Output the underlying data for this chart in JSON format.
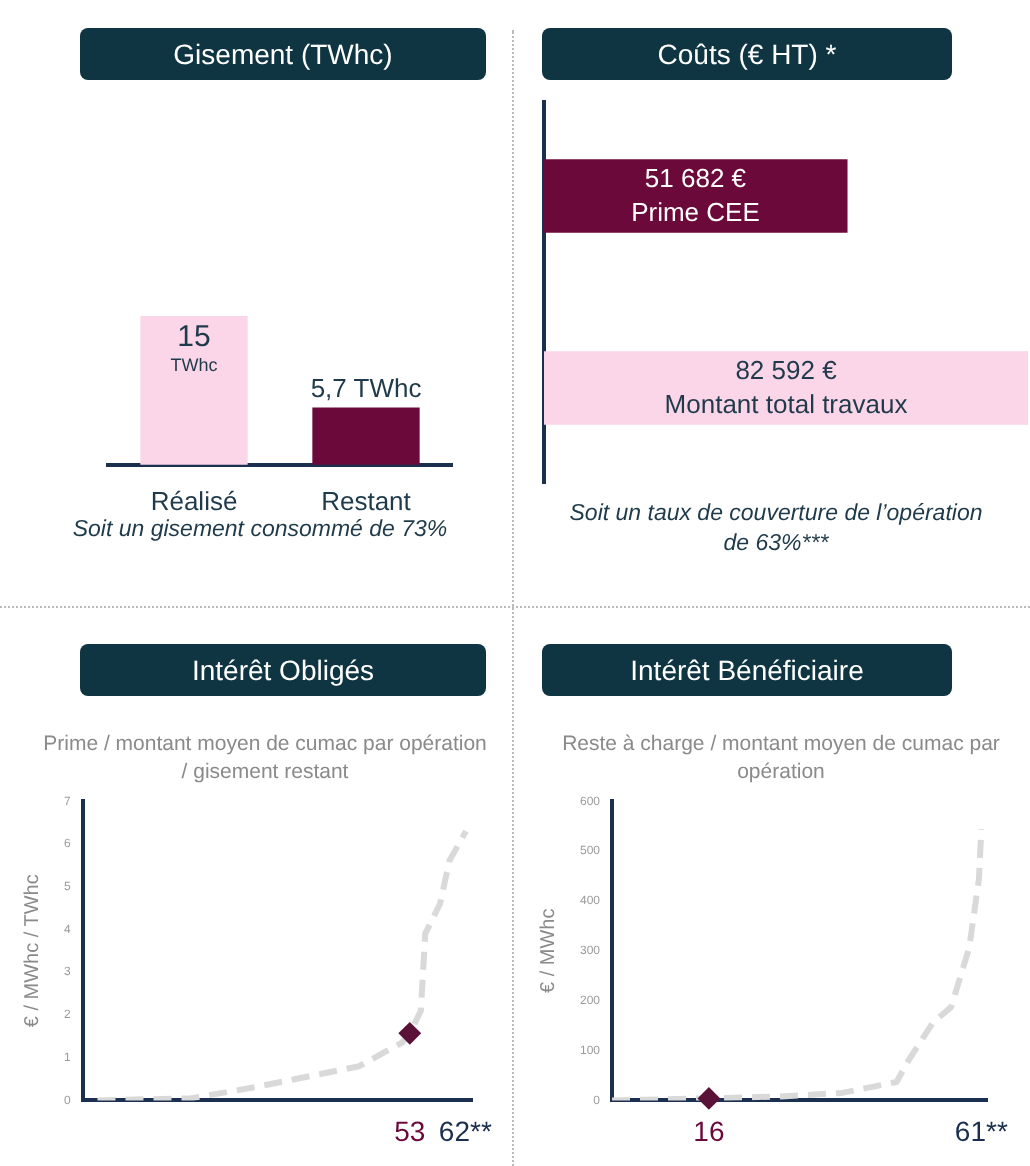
{
  "chart_data": [
    {
      "type": "bar",
      "title": "Gisement (TWhc)",
      "categories": [
        "Réalisé",
        "Restant"
      ],
      "values": [
        15,
        5.7
      ],
      "value_labels": [
        "15 TWhc",
        "5,7 TWhc"
      ],
      "colors": [
        "#fbd5e8",
        "#6b0a3a"
      ],
      "annotations": [
        "Soit un gisement consommé de 73%"
      ]
    },
    {
      "type": "bar",
      "orientation": "horizontal",
      "title": "Coûts (€ HT) *",
      "categories": [
        "Prime CEE",
        "Montant total travaux"
      ],
      "values": [
        51682,
        82592
      ],
      "value_labels": [
        "51 682 €",
        "82 592 €"
      ],
      "colors": [
        "#6b0a3a",
        "#fbd5e8"
      ],
      "annotations": [
        "Soit un taux de couverture de l’opération de 63%***"
      ]
    },
    {
      "type": "line",
      "title": "Intérêt Obligés",
      "subtitle": "Prime / montant moyen de cumac par opération / gisement restant",
      "ylabel": "€ / MWhc / TWhc",
      "xlim": [
        0,
        63
      ],
      "xticks": [
        {
          "value": 53,
          "label": "53"
        },
        {
          "value": 62,
          "label": "62**"
        }
      ],
      "ylim": [
        0,
        7
      ],
      "yticks": [
        0,
        1,
        2,
        3,
        4,
        5,
        6,
        7
      ],
      "grid": false,
      "series": [
        {
          "type": "line",
          "color": "#d9d9d9",
          "line_style": "dashed",
          "marker": "none",
          "x": [
            2.4,
            17.6,
            27.6,
            37.9,
            44.8,
            51.8,
            53,
            54.8,
            55.5,
            57.9,
            59.4,
            62.1
          ],
          "values": [
            0,
            0.05,
            0.3,
            0.6,
            0.8,
            1.36,
            1.57,
            2.1,
            3.9,
            4.6,
            5.6,
            6.3
          ]
        },
        {
          "type": "scatter",
          "color": "#5a1238",
          "marker": "diamond",
          "x": [
            53
          ],
          "values": [
            1.57
          ]
        }
      ]
    },
    {
      "type": "line",
      "title": "Intérêt Bénéficiaire",
      "subtitle": "Reste à charge / montant moyen de cumac par opération",
      "ylabel": "€ / MWhc",
      "xlim": [
        0,
        62
      ],
      "xticks": [
        {
          "value": 16,
          "label": "16"
        },
        {
          "value": 61,
          "label": "61**"
        }
      ],
      "ylim": [
        0,
        600
      ],
      "yticks": [
        0,
        100,
        200,
        300,
        400,
        500,
        600
      ],
      "grid": false,
      "series": [
        {
          "type": "line",
          "color": "#d9d9d9",
          "line_style": "dashed",
          "marker": "none",
          "x": [
            0,
            15.5,
            28,
            38,
            47,
            49,
            53,
            56,
            59,
            60.6,
            61
          ],
          "values": [
            0,
            4,
            8,
            15,
            37,
            81,
            156,
            187,
            306,
            444,
            544
          ]
        },
        {
          "type": "scatter",
          "color": "#5a1238",
          "marker": "diamond",
          "x": [
            16
          ],
          "values": [
            4
          ]
        }
      ]
    }
  ]
}
